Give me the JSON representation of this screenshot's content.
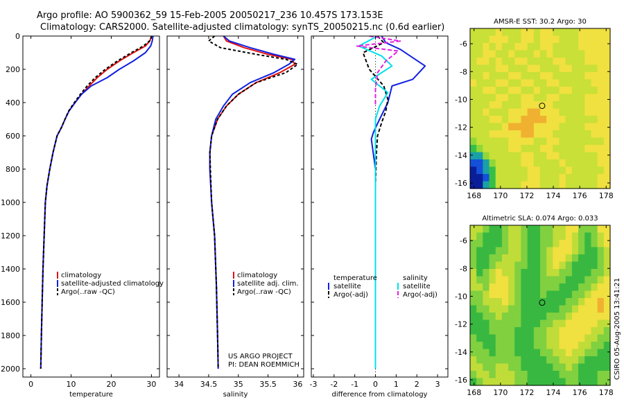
{
  "header": {
    "line1": "Argo profile: AO 5900362_59 15-Feb-2005 20050217_236 10.457S 173.153E",
    "line2": "Climatology: CARS2000. Satellite-adjusted climatology: synTS_20050215.nc (0.6d earlier)"
  },
  "credit": {
    "line1": "US ARGO PROJECT",
    "line2": "PI: DEAN ROEMMICH"
  },
  "side_label": "CSIRO 05-Aug-2005 13:41:21",
  "colors": {
    "climatology": "#e01010",
    "satellite": "#1020e0",
    "argo": "#000000",
    "salinity_satellite": "#00e0e8",
    "salinity_argo": "#e020e0"
  },
  "chart_data": [
    {
      "type": "line",
      "panel": "temperature",
      "xlabel": "temperature",
      "ylabel": "",
      "xlim": [
        -2,
        32
      ],
      "ylim": [
        2050,
        0
      ],
      "xticks": [
        "0",
        "10",
        "20",
        "30"
      ],
      "xtick_values": [
        0,
        10,
        20,
        30
      ],
      "yticks": [
        "0",
        "200",
        "400",
        "600",
        "800",
        "1000",
        "1200",
        "1400",
        "1600",
        "1800",
        "2000"
      ],
      "ytick_values": [
        0,
        200,
        400,
        600,
        800,
        1000,
        1200,
        1400,
        1600,
        1800,
        2000
      ],
      "legend": [
        "climatology",
        "satellite-adjusted climatology",
        "Argo(..raw -QC)"
      ],
      "series": [
        {
          "name": "climatology",
          "color": "#e01010",
          "width": 2,
          "dash": "",
          "x": [
            30.0,
            29.6,
            28.5,
            25.5,
            22,
            19,
            16.5,
            14.5,
            12.6,
            11,
            9.5,
            8.5,
            7.6,
            6.5,
            5.5,
            4.7,
            4.0,
            3.6,
            3.3,
            3.0,
            2.8,
            2.6,
            2.45
          ],
          "y": [
            0,
            30,
            60,
            100,
            150,
            200,
            250,
            300,
            350,
            400,
            450,
            500,
            550,
            600,
            700,
            800,
            900,
            1000,
            1200,
            1400,
            1600,
            1800,
            2000
          ]
        },
        {
          "name": "satellite-adjusted climatology",
          "color": "#1020e0",
          "width": 2,
          "dash": "",
          "x": [
            30.4,
            30.2,
            29.8,
            28.5,
            25.5,
            22,
            19,
            15,
            12.6,
            11,
            9.5,
            8.5,
            7.6,
            6.5,
            5.5,
            4.7,
            4.0,
            3.6,
            3.3,
            3.0,
            2.8,
            2.6,
            2.45
          ],
          "y": [
            0,
            30,
            60,
            100,
            150,
            200,
            250,
            300,
            350,
            400,
            450,
            500,
            550,
            600,
            700,
            800,
            900,
            1000,
            1200,
            1400,
            1600,
            1800,
            2000
          ]
        },
        {
          "name": "Argo(..raw -QC)",
          "color": "#000000",
          "width": 2,
          "dash": "4,3",
          "x": [
            30.1,
            29.5,
            28.0,
            25.0,
            21.5,
            18.5,
            16,
            14,
            12.3,
            10.8,
            9.4,
            8.5,
            7.6,
            6.5,
            5.5,
            4.7,
            4.0,
            3.6,
            3.3,
            3.0,
            2.8,
            2.6,
            2.45
          ],
          "y": [
            0,
            30,
            60,
            100,
            150,
            200,
            250,
            300,
            350,
            400,
            450,
            500,
            550,
            600,
            700,
            800,
            900,
            1000,
            1200,
            1400,
            1600,
            1800,
            2000
          ]
        }
      ]
    },
    {
      "type": "line",
      "panel": "salinity",
      "xlabel": "salinity",
      "ylabel": "",
      "xlim": [
        33.8,
        36.1
      ],
      "ylim": [
        2050,
        0
      ],
      "xticks": [
        "34",
        "34.5",
        "35",
        "35.5",
        "36"
      ],
      "xtick_values": [
        34,
        34.5,
        35,
        35.5,
        36
      ],
      "yticks": [],
      "ytick_values": [
        0,
        200,
        400,
        600,
        800,
        1000,
        1200,
        1400,
        1600,
        1800,
        2000
      ],
      "legend": [
        "climatology",
        "satellite adj. clim.",
        "Argo(..raw -QC)"
      ],
      "series": [
        {
          "name": "climatology",
          "color": "#e01010",
          "width": 2,
          "dash": "",
          "x": [
            34.75,
            34.8,
            35.1,
            35.5,
            35.9,
            35.95,
            35.7,
            35.3,
            35.0,
            34.8,
            34.65,
            34.55,
            34.52,
            34.52,
            34.55,
            34.6,
            34.63,
            34.65,
            34.66
          ],
          "y": [
            0,
            30,
            70,
            110,
            140,
            170,
            220,
            280,
            350,
            420,
            500,
            600,
            700,
            800,
            1000,
            1200,
            1500,
            1800,
            2000
          ]
        },
        {
          "name": "satellite adj. clim.",
          "color": "#1020e0",
          "width": 2,
          "dash": "",
          "x": [
            34.75,
            34.85,
            35.2,
            35.6,
            35.95,
            35.85,
            35.6,
            35.2,
            34.9,
            34.75,
            34.62,
            34.55,
            34.52,
            34.52,
            34.55,
            34.6,
            34.63,
            34.65,
            34.66
          ],
          "y": [
            0,
            30,
            70,
            110,
            140,
            170,
            220,
            280,
            350,
            420,
            500,
            600,
            700,
            800,
            1000,
            1200,
            1500,
            1800,
            2000
          ]
        },
        {
          "name": "Argo(..raw -QC)",
          "color": "#000000",
          "width": 2,
          "dash": "4,3",
          "x": [
            34.6,
            34.5,
            34.7,
            35.3,
            35.8,
            36.0,
            35.8,
            35.3,
            35.0,
            34.8,
            34.65,
            34.55,
            34.52,
            34.53,
            34.55,
            34.6,
            34.63,
            34.65,
            34.66
          ],
          "y": [
            0,
            30,
            70,
            110,
            140,
            170,
            220,
            280,
            350,
            420,
            500,
            600,
            700,
            800,
            1000,
            1200,
            1500,
            1800,
            2000
          ]
        }
      ]
    },
    {
      "type": "line",
      "panel": "difference",
      "xlabel": "difference from climatology",
      "ylabel": "",
      "xlim": [
        -3.1,
        3.5
      ],
      "ylim": [
        2050,
        0
      ],
      "xticks": [
        "-3",
        "-2",
        "-1",
        "0",
        "1",
        "2",
        "3"
      ],
      "xtick_values": [
        -3,
        -2,
        -1,
        0,
        1,
        2,
        3
      ],
      "yticks": [],
      "ytick_values": [
        0,
        200,
        400,
        600,
        800,
        1000,
        1200,
        1400,
        1600,
        1800,
        2000
      ],
      "legend_temperature_title": "temperature",
      "legend_temperature": [
        "satellite",
        "Argo(-adj)"
      ],
      "legend_salinity_title": "salinity",
      "legend_salinity": [
        "satellite",
        "Argo(-adj)"
      ],
      "series": [
        {
          "name": "temperature satellite",
          "color": "#1020e0",
          "width": 2,
          "dash": "",
          "x": [
            0.3,
            0.5,
            1.2,
            2.4,
            1.8,
            0.8,
            0.6,
            0.2,
            -0.1,
            -0.2,
            0,
            0,
            0,
            0
          ],
          "y": [
            0,
            40,
            80,
            180,
            260,
            300,
            400,
            500,
            580,
            620,
            800,
            1200,
            1600,
            2000
          ]
        },
        {
          "name": "temperature Argo(-adj)",
          "color": "#000000",
          "width": 2,
          "dash": "5,3",
          "x": [
            0.1,
            0.4,
            -0.6,
            -0.3,
            0.4,
            0.6,
            0.5,
            0.3,
            0.1,
            0.05,
            0,
            0,
            0,
            0
          ],
          "y": [
            0,
            40,
            100,
            200,
            300,
            380,
            450,
            520,
            600,
            700,
            900,
            1200,
            1600,
            2000
          ]
        },
        {
          "name": "salinity satellite",
          "color": "#00e0e8",
          "width": 2,
          "dash": "",
          "x": [
            0.1,
            -0.8,
            0.3,
            0.8,
            -0.2,
            0.6,
            0.2,
            0,
            0,
            0,
            0
          ],
          "y": [
            0,
            60,
            120,
            180,
            260,
            340,
            420,
            500,
            700,
            1200,
            2000
          ]
        },
        {
          "name": "salinity Argo(-adj)",
          "color": "#e020e0",
          "width": 2,
          "dash": "6,3",
          "x": [
            -0.3,
            1.2,
            -0.9,
            1.1,
            0.5,
            0.1,
            0,
            0
          ],
          "y": [
            0,
            30,
            60,
            90,
            150,
            220,
            320,
            420
          ]
        }
      ]
    },
    {
      "type": "heatmap",
      "panel": "sst-map",
      "title": "AMSR-E SST: 30.2 Argo: 30",
      "xlim": [
        167.7,
        178.3
      ],
      "ylim": [
        -16.4,
        -4.9
      ],
      "xticks": [
        "168",
        "170",
        "172",
        "174",
        "176",
        "178"
      ],
      "xtick_values": [
        168,
        170,
        172,
        174,
        176,
        178
      ],
      "yticks": [
        "-6",
        "-8",
        "-10",
        "-12",
        "-14",
        "-16"
      ],
      "ytick_values": [
        -6,
        -8,
        -10,
        -12,
        -14,
        -16
      ],
      "marker": {
        "lon": 173.153,
        "lat": -10.457
      },
      "palette": [
        "#0a1e9a",
        "#1450d8",
        "#1aa0a8",
        "#34c048",
        "#90d838",
        "#c8e038",
        "#f0e040",
        "#f0b030"
      ],
      "grid": [
        "5555655566566555566666",
        "5556665566566655566666",
        "5565655665566555566666",
        "5566556555656555556666",
        "5665655665555665556666",
        "5555665556655566555566",
        "5565556655566555556666",
        "6555665566556655555666",
        "5566556655655566555566",
        "5555665566556655556666",
        "5556655566666555556666",
        "5565556667766655556666",
        "5556656677776665555566",
        "5555567777666655556666",
        "5556666677666555555666",
        "4555556666556655555556",
        "3455556655566555556666",
        "2245555566556655555566",
        "1124555566555565555566",
        "0123555556655556555556",
        "0013555556655565555566",
        "0023555566655565555566"
      ]
    },
    {
      "type": "heatmap",
      "panel": "sla-map",
      "title": "Altimetric SLA: 0.074 Argo: 0.033",
      "xlim": [
        167.7,
        178.3
      ],
      "ylim": [
        -16.4,
        -4.9
      ],
      "xticks": [
        "168",
        "170",
        "172",
        "174",
        "176",
        "178"
      ],
      "xtick_values": [
        168,
        170,
        172,
        174,
        176,
        178
      ],
      "yticks": [
        "-6",
        "-8",
        "-10",
        "-12",
        "-14",
        "-16"
      ],
      "ytick_values": [
        -6,
        -8,
        -10,
        -12,
        -14,
        -16
      ],
      "marker": {
        "lon": 173.153,
        "lat": -10.457
      },
      "palette": [
        "#0a1e9a",
        "#1450d8",
        "#1aa0a8",
        "#38b840",
        "#80d040",
        "#c0dc38",
        "#f0e040",
        "#f0b030"
      ],
      "grid": [
        "5543345543344556644466",
        "5433345543344556543456",
        "4433345543344566543456",
        "4333445543345666543345",
        "4334455543345665433345",
        "4334555443345654333345",
        "5345655433345544333445",
        "5445665433344443334456",
        "5546665433344433344566",
        "4456665433343333445666",
        "4455565433333334456676",
        "3445554433333344566676",
        "3344544433334445666666",
        "3334444433344556666655",
        "3334444333445566666554",
        "4333444333445566665544",
        "4433444333445566655443",
        "4443444333344556554433",
        "5444444433334455543333",
        "5544554433333445433333",
        "4554555443333344433344",
        "3455555443333334433344"
      ]
    }
  ]
}
